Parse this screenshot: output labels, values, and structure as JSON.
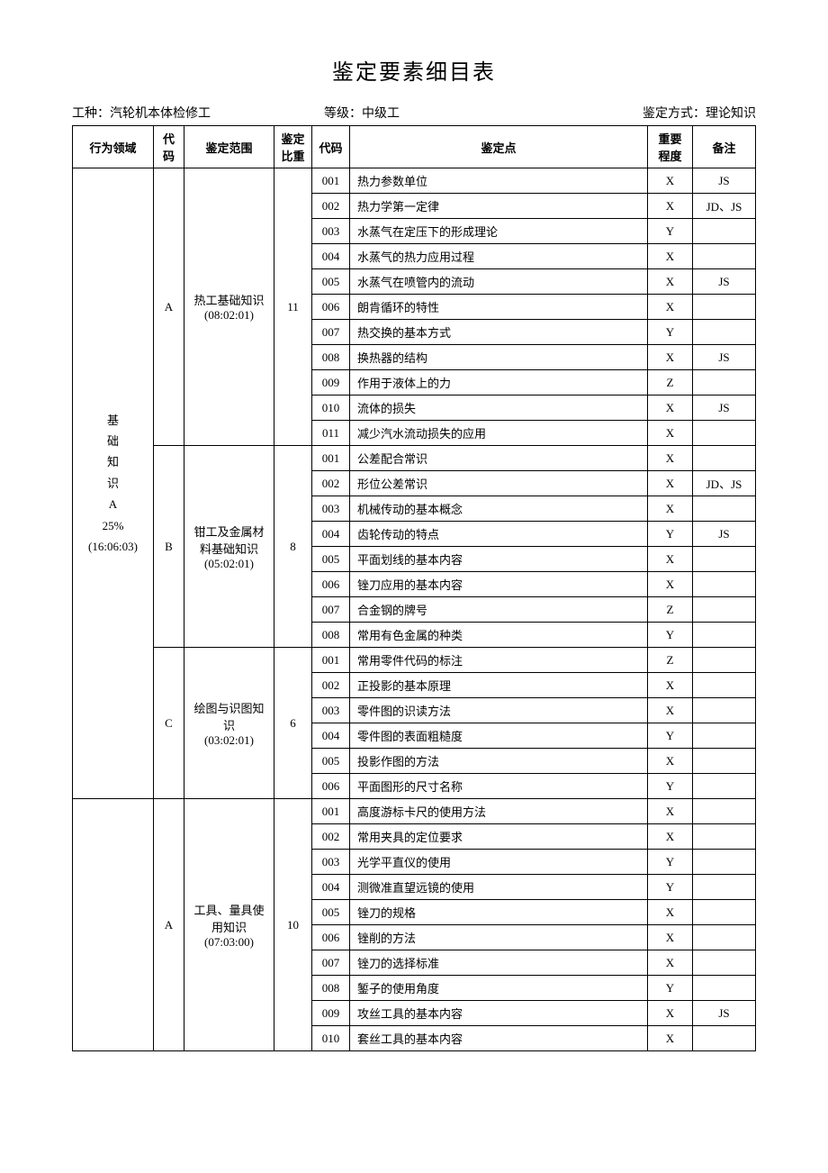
{
  "title": "鉴定要素细目表",
  "header": {
    "left_label": "工种：",
    "left_value": "汽轮机本体检修工",
    "mid_label": "等级：",
    "mid_value": "中级工",
    "right_label": "鉴定方式：",
    "right_value": "理论知识"
  },
  "columns": {
    "domain": "行为领域",
    "code1": "代码",
    "scope": "鉴定范围",
    "weight": "鉴定比重",
    "code2": "代码",
    "point": "鉴定点",
    "importance": "重要程度",
    "remark": "备注"
  },
  "domain1": {
    "label_lines": [
      "基",
      "础",
      "知",
      "识",
      "A",
      "25%",
      "(16:06:03)"
    ]
  },
  "groupA1": {
    "code": "A",
    "scope_line1": "热工基础知识",
    "scope_line2": "(08:02:01)",
    "weight": "11",
    "rows": [
      {
        "code": "001",
        "point": "热力参数单位",
        "imp": "X",
        "remark": "JS"
      },
      {
        "code": "002",
        "point": "热力学第一定律",
        "imp": "X",
        "remark": "JD、JS"
      },
      {
        "code": "003",
        "point": "水蒸气在定压下的形成理论",
        "imp": "Y",
        "remark": ""
      },
      {
        "code": "004",
        "point": "水蒸气的热力应用过程",
        "imp": "X",
        "remark": ""
      },
      {
        "code": "005",
        "point": "水蒸气在喷管内的流动",
        "imp": "X",
        "remark": "JS"
      },
      {
        "code": "006",
        "point": "朗肯循环的特性",
        "imp": "X",
        "remark": ""
      },
      {
        "code": "007",
        "point": "热交换的基本方式",
        "imp": "Y",
        "remark": ""
      },
      {
        "code": "008",
        "point": "换热器的结构",
        "imp": "X",
        "remark": "JS"
      },
      {
        "code": "009",
        "point": "作用于液体上的力",
        "imp": "Z",
        "remark": ""
      },
      {
        "code": "010",
        "point": "流体的损失",
        "imp": "X",
        "remark": "JS"
      },
      {
        "code": "011",
        "point": "减少汽水流动损失的应用",
        "imp": "X",
        "remark": ""
      }
    ]
  },
  "groupB": {
    "code": "B",
    "scope_line1": "钳工及金属材料基础知识",
    "scope_line2": "(05:02:01)",
    "weight": "8",
    "rows": [
      {
        "code": "001",
        "point": "公差配合常识",
        "imp": "X",
        "remark": ""
      },
      {
        "code": "002",
        "point": "形位公差常识",
        "imp": "X",
        "remark": "JD、JS"
      },
      {
        "code": "003",
        "point": "机械传动的基本概念",
        "imp": "X",
        "remark": ""
      },
      {
        "code": "004",
        "point": "齿轮传动的特点",
        "imp": "Y",
        "remark": "JS"
      },
      {
        "code": "005",
        "point": "平面划线的基本内容",
        "imp": "X",
        "remark": ""
      },
      {
        "code": "006",
        "point": "锉刀应用的基本内容",
        "imp": "X",
        "remark": ""
      },
      {
        "code": "007",
        "point": "合金钢的牌号",
        "imp": "Z",
        "remark": ""
      },
      {
        "code": "008",
        "point": "常用有色金属的种类",
        "imp": "Y",
        "remark": ""
      }
    ]
  },
  "groupC": {
    "code": "C",
    "scope_line1": "绘图与识图知识",
    "scope_line2": "(03:02:01)",
    "weight": "6",
    "rows": [
      {
        "code": "001",
        "point": "常用零件代码的标注",
        "imp": "Z",
        "remark": ""
      },
      {
        "code": "002",
        "point": "正投影的基本原理",
        "imp": "X",
        "remark": ""
      },
      {
        "code": "003",
        "point": "零件图的识读方法",
        "imp": "X",
        "remark": ""
      },
      {
        "code": "004",
        "point": "零件图的表面粗糙度",
        "imp": "Y",
        "remark": ""
      },
      {
        "code": "005",
        "point": "投影作图的方法",
        "imp": "X",
        "remark": ""
      },
      {
        "code": "006",
        "point": "平面图形的尺寸名称",
        "imp": "Y",
        "remark": ""
      }
    ]
  },
  "groupA2": {
    "code": "A",
    "scope_line1": "工具、量具使用知识",
    "scope_line2": "(07:03:00)",
    "weight": "10",
    "rows": [
      {
        "code": "001",
        "point": "高度游标卡尺的使用方法",
        "imp": "X",
        "remark": ""
      },
      {
        "code": "002",
        "point": "常用夹具的定位要求",
        "imp": "X",
        "remark": ""
      },
      {
        "code": "003",
        "point": "光学平直仪的使用",
        "imp": "Y",
        "remark": ""
      },
      {
        "code": "004",
        "point": "测微准直望远镜的使用",
        "imp": "Y",
        "remark": ""
      },
      {
        "code": "005",
        "point": "锉刀的规格",
        "imp": "X",
        "remark": ""
      },
      {
        "code": "006",
        "point": "锉削的方法",
        "imp": "X",
        "remark": ""
      },
      {
        "code": "007",
        "point": "锉刀的选择标准",
        "imp": "X",
        "remark": ""
      },
      {
        "code": "008",
        "point": "錾子的使用角度",
        "imp": "Y",
        "remark": ""
      },
      {
        "code": "009",
        "point": "攻丝工具的基本内容",
        "imp": "X",
        "remark": "JS"
      },
      {
        "code": "010",
        "point": "套丝工具的基本内容",
        "imp": "X",
        "remark": ""
      }
    ]
  }
}
